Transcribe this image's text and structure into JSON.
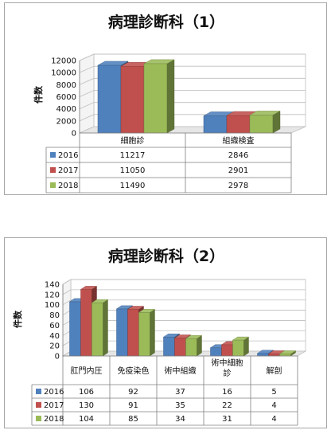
{
  "chart_data": [
    {
      "type": "bar",
      "title": "病理診断科（1）",
      "ylabel": "件数",
      "xlabel": "",
      "ylim": [
        0,
        12000
      ],
      "yticks": [
        0,
        2000,
        4000,
        6000,
        8000,
        10000,
        12000
      ],
      "grid": true,
      "legend": "table-left",
      "categories": [
        "細胞診",
        "組織検査"
      ],
      "series": [
        {
          "name": "2016",
          "color": "#4F81BD",
          "values": [
            11217,
            2846
          ]
        },
        {
          "name": "2017",
          "color": "#C0504D",
          "values": [
            11050,
            2901
          ]
        },
        {
          "name": "2018",
          "color": "#9BBB59",
          "values": [
            11490,
            2978
          ]
        }
      ]
    },
    {
      "type": "bar",
      "title": "病理診断科（2）",
      "ylabel": "件数",
      "xlabel": "",
      "ylim": [
        0,
        140
      ],
      "yticks": [
        0,
        20,
        40,
        60,
        80,
        100,
        120,
        140
      ],
      "grid": true,
      "legend": "table-left",
      "categories": [
        "肛門内圧",
        "免疫染色",
        "術中組織",
        "術中細胞診",
        "解剖"
      ],
      "series": [
        {
          "name": "2016",
          "color": "#4F81BD",
          "values": [
            106,
            92,
            37,
            16,
            5
          ]
        },
        {
          "name": "2017",
          "color": "#C0504D",
          "values": [
            130,
            91,
            35,
            22,
            4
          ]
        },
        {
          "name": "2018",
          "color": "#9BBB59",
          "values": [
            104,
            85,
            34,
            31,
            4
          ]
        }
      ]
    }
  ]
}
